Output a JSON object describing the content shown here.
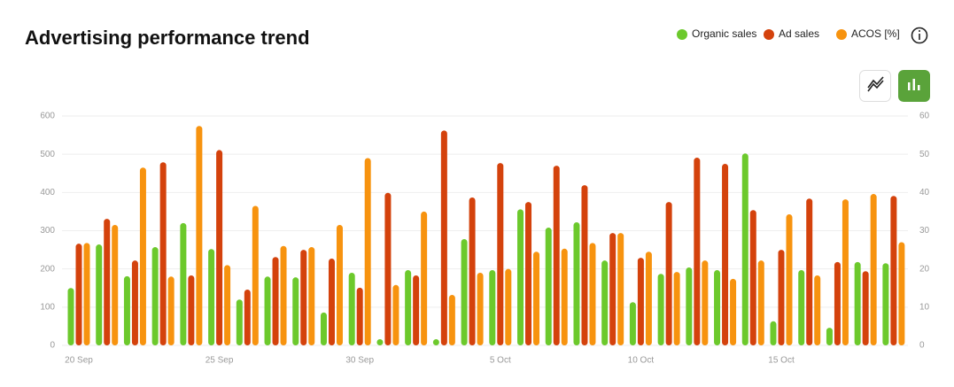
{
  "chart_data": {
    "type": "bar",
    "title": "Advertising performance trend",
    "categories": [
      "20 Sep",
      null,
      null,
      null,
      null,
      "25 Sep",
      null,
      null,
      null,
      null,
      "30 Sep",
      null,
      null,
      null,
      null,
      "5 Oct",
      null,
      null,
      null,
      null,
      "10 Oct",
      null,
      null,
      null,
      null,
      "15 Oct",
      null,
      null,
      null,
      null
    ],
    "series": [
      {
        "name": "Organic sales",
        "color": "#6cc92c",
        "values": [
          150,
          264,
          181,
          257,
          320,
          252,
          120,
          180,
          178,
          86,
          190,
          12,
          197,
          0,
          278,
          197,
          356,
          308,
          322,
          222,
          113,
          187,
          204,
          197,
          502,
          63,
          197,
          46,
          218,
          215
        ]
      },
      {
        "name": "Ad sales",
        "color": "#d4420c",
        "values": [
          266,
          331,
          222,
          479,
          183,
          511,
          146,
          231,
          250,
          227,
          151,
          399,
          183,
          562,
          387,
          477,
          375,
          470,
          419,
          294,
          229,
          375,
          491,
          475,
          354,
          250,
          384,
          218,
          194,
          391
        ]
      },
      {
        "name": "ACOS [%]",
        "color": "#f7930f",
        "axis": "y2",
        "values": [
          26.8,
          31.5,
          46.5,
          18,
          57.4,
          21,
          36.5,
          26,
          25.7,
          31.5,
          49,
          15.8,
          35,
          13.2,
          19,
          20,
          24.5,
          25.3,
          26.8,
          29.4,
          24.5,
          19.2,
          22.2,
          17.4,
          22.2,
          34.3,
          18.3,
          38.2,
          39.6,
          27
        ]
      }
    ],
    "ylim": [
      0,
      600
    ],
    "yticks": [
      0,
      100,
      200,
      300,
      400,
      500,
      600
    ],
    "y2lim": [
      0,
      60
    ],
    "y2ticks": [
      0,
      10,
      20,
      30,
      40,
      50,
      60
    ],
    "grid": true
  }
}
